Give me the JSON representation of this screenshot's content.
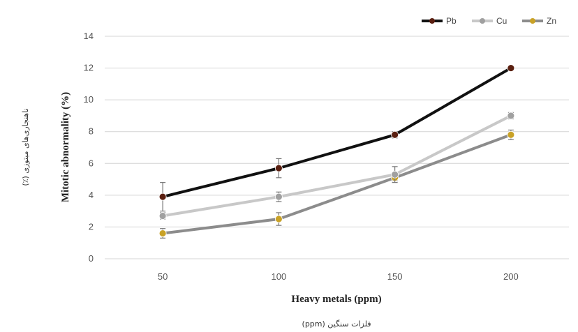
{
  "chart_data": {
    "type": "line",
    "categories": [
      "50",
      "100",
      "150",
      "200"
    ],
    "xlabel": "Heavy metals (ppm)",
    "xlabel_secondary": "فلزات سنگین (ppm)",
    "ylabel": "Mitotic abnormality (%)",
    "ylabel_secondary": "ناهنجاری‌های میتوزی (٪)",
    "ylim": [
      0,
      14
    ],
    "yticks": [
      "0",
      "2",
      "4",
      "6",
      "8",
      "10",
      "12",
      "14"
    ],
    "grid": true,
    "legend_position": "top-right",
    "series": [
      {
        "name": "Pb",
        "values": [
          3.9,
          5.7,
          7.8,
          12.0
        ],
        "errors": [
          0.9,
          0.6,
          0.2,
          0.1
        ],
        "color": "#111111",
        "marker_color": "#5a1f10"
      },
      {
        "name": "Cu",
        "values": [
          2.7,
          3.9,
          5.3,
          9.0
        ],
        "errors": [
          0.2,
          0.3,
          0.5,
          0.2
        ],
        "color": "#c8c8c8",
        "marker_color": "#a0a0a0"
      },
      {
        "name": "Zn",
        "values": [
          1.6,
          2.5,
          5.1,
          7.8
        ],
        "errors": [
          0.3,
          0.4,
          0.2,
          0.3
        ],
        "color": "#8c8c8c",
        "marker_color": "#c9a227"
      }
    ]
  }
}
